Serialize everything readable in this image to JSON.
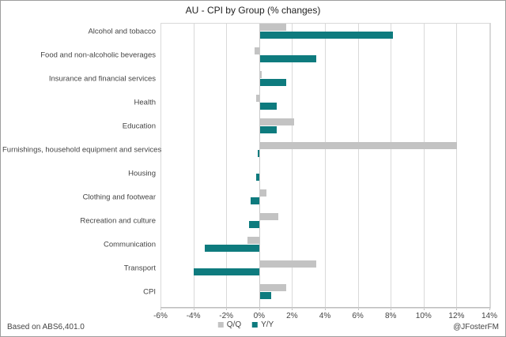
{
  "title": "AU - CPI by Group (% changes)",
  "footer": {
    "left": "Based on ABS6,401.0",
    "right": "@JFosterFM"
  },
  "colors": {
    "qq_gray": "#c3c3c3",
    "yy_teal": "#0e7b7e",
    "gridline": "#d9d9d9",
    "text": "#444444"
  },
  "chart_data": {
    "type": "bar",
    "orientation": "horizontal",
    "title": "AU - CPI by Group (% changes)",
    "categories": [
      "Alcohol and tobacco",
      "Food and non-alcoholic beverages",
      "Insurance and financial services",
      "Health",
      "Education",
      "Furnishings, household equipment and services",
      "Housing",
      "Clothing and footwear",
      "Recreation and culture",
      "Communication",
      "Transport",
      "CPI"
    ],
    "series": [
      {
        "name": "Q/Q",
        "color": "#c3c3c3",
        "values": [
          1.6,
          -0.3,
          0.1,
          -0.2,
          2.1,
          12.0,
          0.0,
          0.4,
          1.1,
          -0.7,
          3.4,
          1.6
        ]
      },
      {
        "name": "Y/Y",
        "color": "#0e7b7e",
        "values": [
          8.1,
          3.4,
          1.6,
          1.0,
          1.0,
          -0.1,
          -0.2,
          -0.5,
          -0.6,
          -3.3,
          -4.0,
          0.7
        ]
      }
    ],
    "xlim": [
      -6,
      14
    ],
    "xtick_values": [
      -6,
      -4,
      -2,
      0,
      2,
      4,
      6,
      8,
      10,
      12,
      14
    ],
    "xtick_labels": [
      "-6%",
      "-4%",
      "-2%",
      "0%",
      "2%",
      "4%",
      "6%",
      "8%",
      "10%",
      "12%",
      "14%"
    ],
    "grid": true,
    "legend_position": "bottom"
  }
}
